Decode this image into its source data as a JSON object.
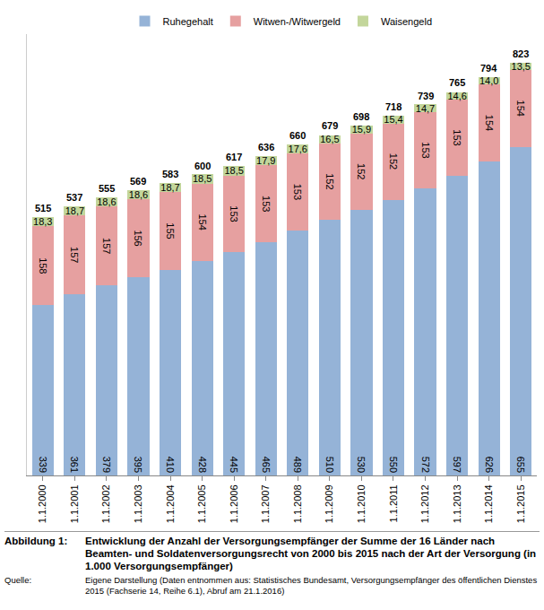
{
  "chart_data": {
    "type": "bar",
    "figure_label": "Abbildung 1:",
    "title": "Entwicklung der Anzahl der Versorgungsempfänger der Summe der 16 Länder nach Beamten- und Soldatenversorgungsrecht von 2000 bis 2015 nach der Art der Versorgung (in 1.000 Versorgungsempfänger)",
    "source_label": "Quelle:",
    "source": "Eigene Darstellung (Daten entnommen aus: Statistisches Bundesamt, Versorgungsempfänger des öffentlichen Dienstes 2015 (Fachserie 14, Reihe 6.1), Abruf am 21.1.2016)",
    "categories": [
      "1.1.2000",
      "1.1.2001",
      "1.1.2002",
      "1.1.2003",
      "1.1.2004",
      "1.1.2005",
      "1.1.2006",
      "1.1.2007",
      "1.1.2008",
      "1.1.2009",
      "1.1.2010",
      "1.1.2011",
      "1.1.2012",
      "1.1.2013",
      "1.1.2014",
      "1.1.2015"
    ],
    "series": [
      {
        "name": "Ruhegehalt",
        "color": "#95b3d7",
        "values": [
          339,
          361,
          379,
          395,
          410,
          428,
          445,
          465,
          489,
          510,
          530,
          550,
          572,
          597,
          626,
          655
        ]
      },
      {
        "name": "Witwen-/Witwergeld",
        "color": "#e6a0a0",
        "values": [
          158,
          157,
          157,
          156,
          155,
          154,
          153,
          153,
          153,
          152,
          152,
          152,
          153,
          153,
          154,
          154
        ]
      },
      {
        "name": "Waisengeld",
        "color": "#c3d69b",
        "values": [
          18.3,
          18.7,
          18.6,
          18.6,
          18.7,
          18.5,
          18.5,
          17.9,
          17.6,
          16.5,
          15.9,
          15.4,
          14.7,
          14.6,
          14.0,
          13.5
        ],
        "value_labels": [
          "18,3",
          "18,7",
          "18,6",
          "18,6",
          "18,7",
          "18,5",
          "18,5",
          "17,9",
          "17,6",
          "16,5",
          "15,9",
          "15,4",
          "14,7",
          "14,6",
          "14,0",
          "13,5"
        ]
      }
    ],
    "totals": [
      515,
      537,
      555,
      569,
      583,
      600,
      617,
      636,
      660,
      679,
      698,
      718,
      739,
      765,
      794,
      823
    ],
    "ylim": [
      0,
      880
    ],
    "yticks": [],
    "stacked": true,
    "data_labels": true,
    "grid": false,
    "legend": "top",
    "tick_labels": "x"
  }
}
